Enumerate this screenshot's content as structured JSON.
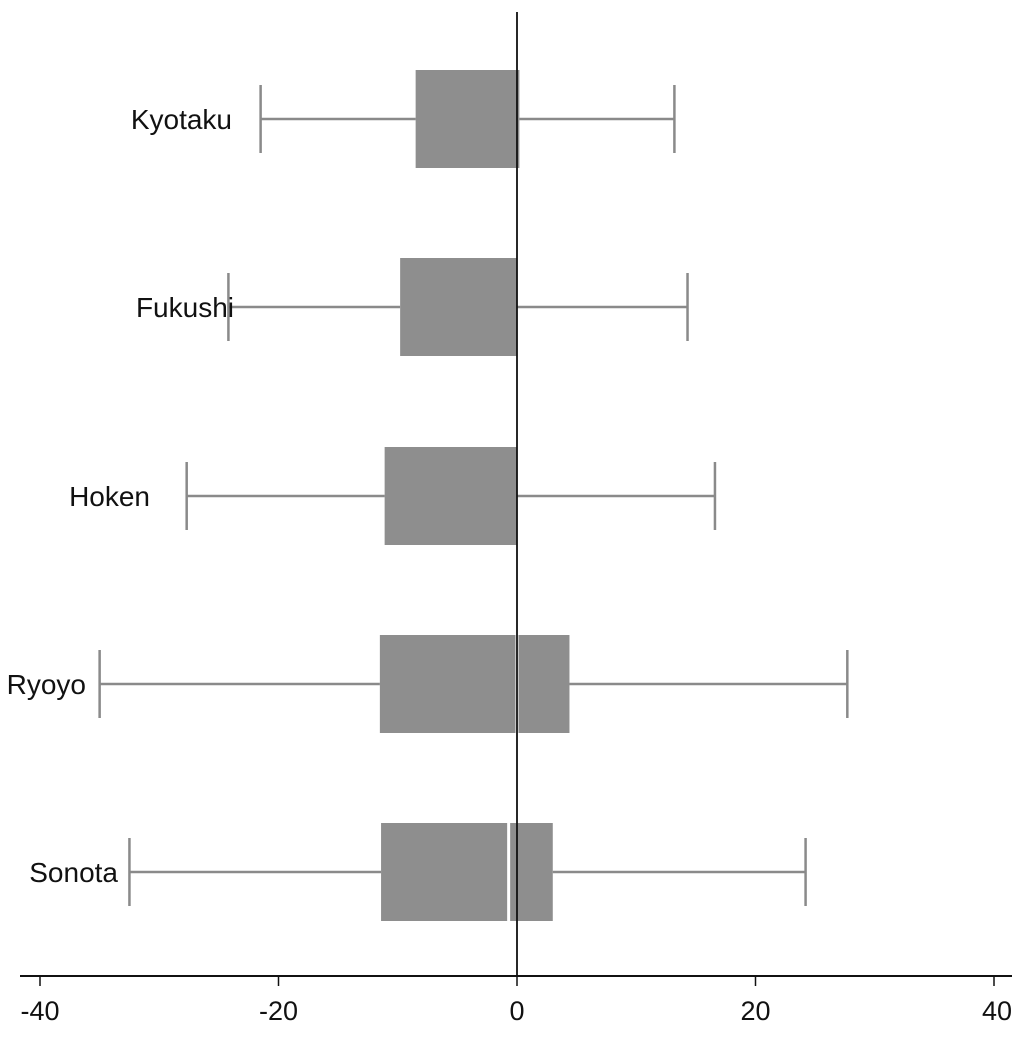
{
  "chart_data": {
    "type": "boxplot",
    "orientation": "horizontal",
    "title": "",
    "xlabel": "",
    "ylabel": "",
    "xlim": [
      -42,
      42
    ],
    "x_ticks": [
      -40,
      -20,
      0,
      20,
      40
    ],
    "x_tick_labels": [
      "-40",
      "-20",
      "0",
      "20",
      "40"
    ],
    "reference_line_x": 0,
    "grid": false,
    "colors": {
      "box": "#8e8e8e",
      "whisker": "#8a8a8a",
      "axis": "#111111",
      "median": "#ffffff"
    },
    "categories": [
      "Kyotaku",
      "Fukushi",
      "Hoken",
      "Ryoyo",
      "Sonota"
    ],
    "boxes": [
      {
        "label": "Kyotaku",
        "whisker_low": -21.5,
        "q1": -8.5,
        "median": 0.2,
        "q3": 0.2,
        "whisker_high": 13.2
      },
      {
        "label": "Fukushi",
        "whisker_low": -24.2,
        "q1": -9.8,
        "median": 0.0,
        "q3": 0.0,
        "whisker_high": 14.3
      },
      {
        "label": "Hoken",
        "whisker_low": -27.7,
        "q1": -11.1,
        "median": 0.0,
        "q3": 0.0,
        "whisker_high": 16.6
      },
      {
        "label": "Ryoyo",
        "whisker_low": -35.0,
        "q1": -11.5,
        "median": 0.0,
        "q3": 4.4,
        "whisker_high": 27.7
      },
      {
        "label": "Sonota",
        "whisker_low": -32.5,
        "q1": -11.4,
        "median": -0.7,
        "q3": 3.0,
        "whisker_high": 24.2
      }
    ]
  }
}
